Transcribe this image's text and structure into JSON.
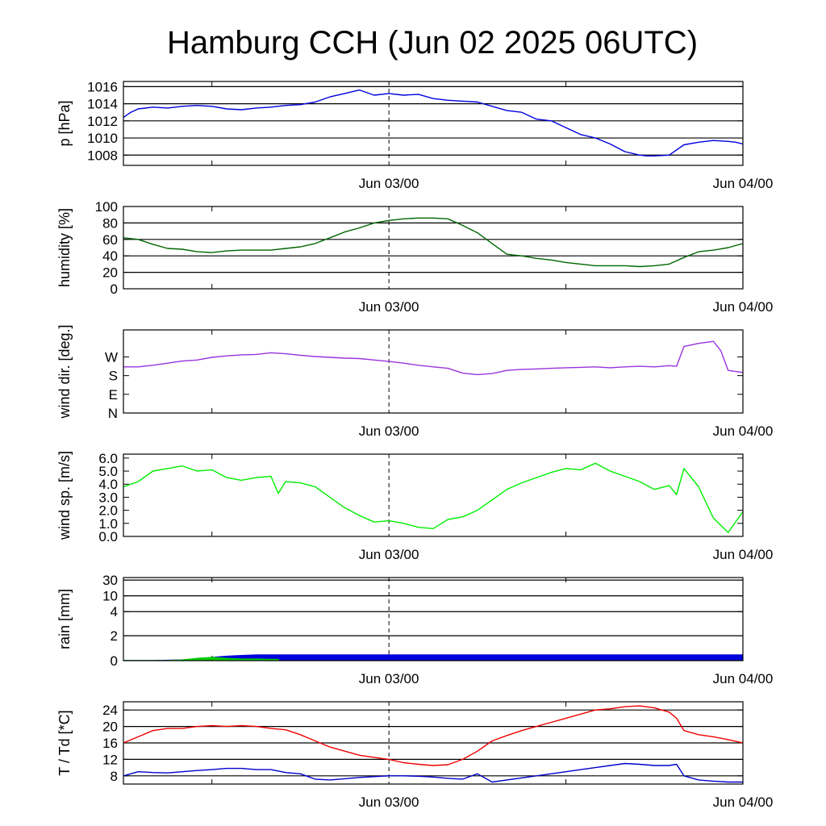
{
  "title": "Hamburg CCH (Jun 02 2025 06UTC)",
  "x_tick_labels": [
    "Jun 03/00",
    "Jun 04/00"
  ],
  "chart_data": [
    {
      "type": "line",
      "ylabel": "p [hPa]",
      "ylim": [
        1006.8,
        1016.6
      ],
      "ytick_values": [
        1008,
        1010,
        1012,
        1014,
        1016
      ],
      "ytick_labels": [
        "1008",
        "1010",
        "1012",
        "1014",
        "1016"
      ],
      "grid": true,
      "color": "#0000dd",
      "x": [
        0,
        0.5,
        1,
        2,
        3,
        4,
        5,
        6,
        7,
        8,
        9,
        10,
        11,
        12,
        13,
        14,
        15,
        16,
        17,
        18,
        19,
        20,
        21,
        22,
        23,
        24,
        25,
        26,
        27,
        28,
        29,
        30,
        31,
        32,
        33,
        34,
        35,
        35.5,
        36,
        37,
        38,
        39,
        40,
        41,
        41.5,
        42
      ],
      "y": [
        1012.4,
        1013.0,
        1013.4,
        1013.6,
        1013.5,
        1013.7,
        1013.8,
        1013.7,
        1013.4,
        1013.3,
        1013.5,
        1013.6,
        1013.8,
        1013.9,
        1014.2,
        1014.8,
        1015.2,
        1015.6,
        1015.0,
        1015.2,
        1015.0,
        1015.1,
        1014.6,
        1014.4,
        1014.3,
        1014.2,
        1013.7,
        1013.2,
        1013.0,
        1012.2,
        1012.0,
        1011.2,
        1010.4,
        1010.0,
        1009.3,
        1008.4,
        1008.0,
        1007.9,
        1007.9,
        1008.0,
        1009.2,
        1009.5,
        1009.7,
        1009.6,
        1009.5,
        1009.3
      ]
    },
    {
      "type": "line",
      "ylabel": "humidity [%]",
      "ylim": [
        0,
        100
      ],
      "ytick_values": [
        0,
        20,
        40,
        60,
        80,
        100
      ],
      "ytick_labels": [
        "0",
        "20",
        "40",
        "60",
        "80",
        "100"
      ],
      "grid": true,
      "color": "#006600",
      "x": [
        0,
        1,
        2,
        3,
        4,
        5,
        6,
        7,
        8,
        9,
        10,
        11,
        12,
        13,
        14,
        15,
        16,
        17,
        18,
        19,
        20,
        21,
        22,
        23,
        24,
        25,
        26,
        27,
        28,
        29,
        30,
        31,
        32,
        33,
        34,
        35,
        36,
        37,
        38,
        39,
        40,
        41,
        42
      ],
      "y": [
        62,
        60,
        54,
        49,
        48,
        45,
        44,
        46,
        47,
        47,
        47,
        49,
        51,
        55,
        62,
        69,
        74,
        80,
        83,
        85,
        86,
        86,
        85,
        77,
        68,
        55,
        42,
        40,
        37,
        35,
        32,
        30,
        28,
        28,
        28,
        27,
        28,
        30,
        38,
        45,
        47,
        50,
        55
      ]
    },
    {
      "type": "line",
      "ylabel": "wind dir. [deg.]",
      "ylim": [
        0,
        400
      ],
      "ytick_values": [
        0,
        90,
        180,
        270
      ],
      "ytick_labels": [
        "N",
        "E",
        "S",
        "W"
      ],
      "grid": false,
      "color": "#9933dd",
      "x": [
        0,
        1,
        2,
        3,
        4,
        5,
        6,
        7,
        8,
        9,
        10,
        11,
        12,
        13,
        14,
        15,
        16,
        17,
        18,
        19,
        20,
        21,
        22,
        23,
        24,
        25,
        26,
        27,
        28,
        29,
        30,
        31,
        32,
        33,
        34,
        35,
        36,
        37,
        37.5,
        38,
        39,
        40,
        40.5,
        41,
        42
      ],
      "y": [
        222,
        222,
        230,
        240,
        250,
        255,
        268,
        275,
        280,
        282,
        290,
        285,
        278,
        272,
        268,
        264,
        262,
        255,
        248,
        240,
        230,
        222,
        215,
        192,
        185,
        190,
        205,
        210,
        212,
        215,
        218,
        220,
        222,
        218,
        222,
        225,
        222,
        228,
        225,
        320,
        335,
        345,
        300,
        205,
        195
      ]
    },
    {
      "type": "line",
      "ylabel": "wind sp. [m/s]",
      "ylim": [
        0,
        6.3
      ],
      "ytick_values": [
        0,
        1,
        2,
        3,
        4,
        5,
        6
      ],
      "ytick_labels": [
        "0.0",
        "1.0",
        "2.0",
        "3.0",
        "4.0",
        "5.0",
        "6.0"
      ],
      "grid": false,
      "color": "#00ee00",
      "x": [
        0,
        1,
        2,
        3,
        4,
        5,
        6,
        7,
        8,
        9,
        10,
        10.5,
        11,
        12,
        13,
        14,
        15,
        16,
        17,
        18,
        19,
        20,
        21,
        22,
        23,
        24,
        25,
        26,
        27,
        28,
        29,
        30,
        31,
        32,
        33,
        34,
        35,
        36,
        37,
        37.5,
        38,
        39,
        40,
        41,
        42
      ],
      "y": [
        3.8,
        4.2,
        5.0,
        5.2,
        5.4,
        5.0,
        5.1,
        4.5,
        4.3,
        4.5,
        4.6,
        3.3,
        4.2,
        4.1,
        3.8,
        3.0,
        2.2,
        1.6,
        1.1,
        1.2,
        1.0,
        0.7,
        0.6,
        1.3,
        1.5,
        2.0,
        2.8,
        3.6,
        4.1,
        4.5,
        4.9,
        5.2,
        5.1,
        5.6,
        5.0,
        4.6,
        4.2,
        3.6,
        3.9,
        3.2,
        5.2,
        3.8,
        1.4,
        0.3,
        1.9
      ]
    },
    {
      "type": "area",
      "ylabel": "rain [mm]",
      "scale": "nonlinear",
      "ytick_values": [
        0,
        2,
        4,
        10,
        30
      ],
      "ytick_labels": [
        "0",
        "2",
        "4",
        "10",
        "30"
      ],
      "grid": true,
      "series": [
        {
          "color": "#0000dd",
          "x": [
            0,
            2,
            4,
            5,
            6,
            7,
            8,
            9,
            42
          ],
          "y": [
            0,
            0,
            0.05,
            0.15,
            0.25,
            0.35,
            0.4,
            0.45,
            0.45
          ]
        },
        {
          "color": "#00cc00",
          "x": [
            0,
            3,
            4,
            5,
            6,
            7,
            8,
            9,
            10,
            10.5
          ],
          "y": [
            0,
            0,
            0.05,
            0.18,
            0.25,
            0.18,
            0.12,
            0.12,
            0.1,
            0.1
          ]
        }
      ]
    },
    {
      "type": "line",
      "ylabel": "T / Td [*C]",
      "ylim": [
        6,
        26
      ],
      "ytick_values": [
        8,
        12,
        16,
        20,
        24
      ],
      "ytick_labels": [
        "8",
        "12",
        "16",
        "20",
        "24"
      ],
      "grid": true,
      "series": [
        {
          "color": "#ee0000",
          "x": [
            0,
            1,
            2,
            3,
            4,
            5,
            6,
            7,
            8,
            9,
            10,
            11,
            12,
            13,
            14,
            15,
            16,
            17,
            18,
            19,
            20,
            21,
            22,
            23,
            24,
            25,
            26,
            27,
            28,
            29,
            30,
            31,
            32,
            33,
            34,
            35,
            36,
            37,
            37.5,
            38,
            39,
            40,
            41,
            42
          ],
          "y": [
            16.0,
            17.5,
            19.0,
            19.5,
            19.5,
            20.0,
            20.2,
            20.0,
            20.2,
            20.0,
            19.5,
            19.2,
            18.0,
            16.5,
            15.0,
            14.0,
            13.0,
            12.5,
            12.0,
            11.2,
            10.8,
            10.5,
            10.7,
            12.0,
            14.0,
            16.5,
            17.8,
            19.0,
            20.0,
            21.0,
            22.0,
            23.0,
            24.0,
            24.3,
            24.8,
            25.0,
            24.5,
            23.5,
            22.0,
            19.0,
            18.0,
            17.5,
            16.8,
            16.0
          ]
        },
        {
          "color": "#0000cc",
          "x": [
            0,
            1,
            2,
            3,
            4,
            5,
            6,
            7,
            8,
            9,
            10,
            11,
            12,
            13,
            14,
            15,
            16,
            17,
            18,
            19,
            20,
            21,
            22,
            23,
            24,
            25,
            26,
            27,
            28,
            29,
            30,
            31,
            32,
            33,
            34,
            35,
            36,
            37,
            37.5,
            38,
            39,
            40,
            41,
            42
          ],
          "y": [
            8.0,
            9.0,
            8.8,
            8.7,
            9.0,
            9.3,
            9.5,
            9.8,
            9.8,
            9.5,
            9.5,
            8.8,
            8.5,
            7.2,
            7.0,
            7.3,
            7.6,
            7.8,
            8.0,
            8.0,
            7.9,
            7.7,
            7.4,
            7.2,
            8.5,
            6.5,
            7.0,
            7.5,
            8.0,
            8.5,
            9.0,
            9.5,
            10.0,
            10.5,
            11.0,
            10.8,
            10.5,
            10.5,
            10.8,
            8.0,
            7.0,
            6.7,
            6.5,
            6.5
          ]
        }
      ]
    }
  ]
}
